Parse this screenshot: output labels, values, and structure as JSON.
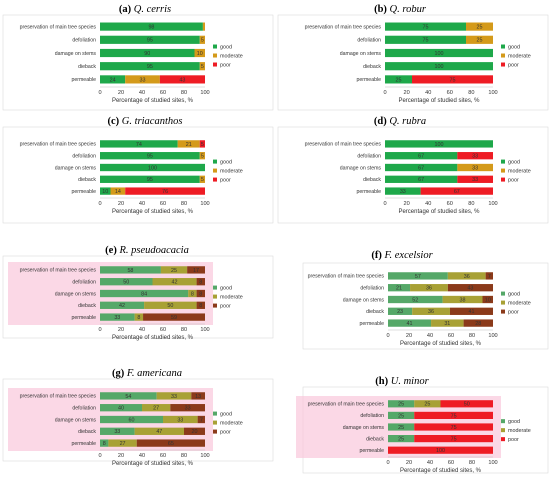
{
  "chart_data": [
    {
      "type": "bar",
      "stacked": true,
      "orientation": "horizontal",
      "label": "(a)",
      "species": "Q. cerris",
      "categories": [
        "preservation of main tree species",
        "defoliation",
        "damage on stems",
        "dieback",
        "permeable"
      ],
      "series": [
        {
          "name": "good",
          "values": [
            98,
            95,
            90,
            95,
            24
          ],
          "labels": [
            "98",
            "95",
            "90",
            "95",
            "24"
          ]
        },
        {
          "name": "moderate",
          "values": [
            2,
            5,
            10,
            5,
            33
          ],
          "labels": [
            "",
            "5",
            "10",
            "5",
            "33"
          ]
        },
        {
          "name": "poor",
          "values": [
            0,
            0,
            0,
            0,
            43
          ],
          "labels": [
            "",
            "",
            "",
            "",
            "43"
          ]
        }
      ],
      "xlabel": "Percentage of studied sites, %",
      "xlim": [
        0,
        100
      ],
      "xticks": [
        "0",
        "20",
        "40",
        "60",
        "80",
        "100"
      ],
      "legend": "right"
    },
    {
      "type": "bar",
      "stacked": true,
      "orientation": "horizontal",
      "label": "(b)",
      "species": "Q. robur",
      "categories": [
        "preservation of main tree species",
        "defoliation",
        "damage on stems",
        "dieback",
        "permeable"
      ],
      "series": [
        {
          "name": "good",
          "values": [
            75,
            75,
            100,
            100,
            25
          ],
          "labels": [
            "75",
            "75",
            "100",
            "100",
            "25"
          ]
        },
        {
          "name": "moderate",
          "values": [
            25,
            25,
            0,
            0,
            0
          ],
          "labels": [
            "25",
            "25",
            "",
            "",
            ""
          ]
        },
        {
          "name": "poor",
          "values": [
            0,
            0,
            0,
            0,
            75
          ],
          "labels": [
            "",
            "",
            "",
            "",
            "75"
          ]
        }
      ],
      "xlabel": "Percentage of studied sites, %",
      "xlim": [
        0,
        100
      ],
      "xticks": [
        "0",
        "20",
        "40",
        "60",
        "80",
        "100"
      ],
      "legend": "right"
    },
    {
      "type": "bar",
      "stacked": true,
      "orientation": "horizontal",
      "label": "(c)",
      "species": "G. triacanthos",
      "categories": [
        "preservation of main tree species",
        "defoliation",
        "damage on stems",
        "dieback",
        "permeable"
      ],
      "series": [
        {
          "name": "good",
          "values": [
            74,
            95,
            100,
            95,
            10
          ],
          "labels": [
            "74",
            "95",
            "100",
            "95",
            "10"
          ]
        },
        {
          "name": "moderate",
          "values": [
            21,
            5,
            0,
            5,
            14
          ],
          "labels": [
            "21",
            "5",
            "",
            "5",
            "14"
          ]
        },
        {
          "name": "poor",
          "values": [
            5,
            0,
            0,
            0,
            76
          ],
          "labels": [
            "5",
            "",
            "",
            "",
            "76"
          ]
        }
      ],
      "xlabel": "Percentage of studied sites, %",
      "xlim": [
        0,
        100
      ],
      "xticks": [
        "0",
        "20",
        "40",
        "60",
        "80",
        "100"
      ],
      "legend": "right"
    },
    {
      "type": "bar",
      "stacked": true,
      "orientation": "horizontal",
      "label": "(d)",
      "species": "Q. rubra",
      "categories": [
        "preservation of main tree species",
        "defoliation",
        "damage on stems",
        "dieback",
        "permeable"
      ],
      "series": [
        {
          "name": "good",
          "values": [
            100,
            67,
            67,
            67,
            33
          ],
          "labels": [
            "100",
            "67",
            "67",
            "67",
            "33"
          ]
        },
        {
          "name": "moderate",
          "values": [
            0,
            0,
            33,
            0,
            0
          ],
          "labels": [
            "",
            "",
            "33",
            "",
            ""
          ]
        },
        {
          "name": "poor",
          "values": [
            0,
            33,
            0,
            33,
            67
          ],
          "labels": [
            "",
            "33",
            "",
            "33",
            "67"
          ]
        }
      ],
      "xlabel": "Percentage of studied sites, %",
      "xlim": [
        0,
        100
      ],
      "xticks": [
        "0",
        "20",
        "40",
        "60",
        "80",
        "100"
      ],
      "legend": "right"
    },
    {
      "type": "bar",
      "stacked": true,
      "orientation": "horizontal",
      "label": "(e)",
      "species": "R. pseudoacacia",
      "categories": [
        "preservation of main tree species",
        "defoliation",
        "damage on stems",
        "dieback",
        "permeable"
      ],
      "series": [
        {
          "name": "good",
          "values": [
            58,
            50,
            84,
            42,
            33
          ],
          "labels": [
            "58",
            "50",
            "84",
            "42",
            "33"
          ]
        },
        {
          "name": "moderate",
          "values": [
            25,
            42,
            8,
            50,
            8
          ],
          "labels": [
            "25",
            "42",
            "8",
            "50",
            "8"
          ]
        },
        {
          "name": "poor",
          "values": [
            17,
            8,
            8,
            8,
            59
          ],
          "labels": [
            "17",
            "8",
            "8",
            "8",
            "59"
          ]
        }
      ],
      "xlabel": "Percentage of studied sites, %",
      "xlim": [
        0,
        100
      ],
      "xticks": [
        "0",
        "20",
        "40",
        "60",
        "80",
        "100"
      ],
      "legend": "right"
    },
    {
      "type": "bar",
      "stacked": true,
      "orientation": "horizontal",
      "label": "(f)",
      "species": "F. excelsior",
      "categories": [
        "preservation of main tree species",
        "defoliation",
        "damage on stems",
        "dieback",
        "permeable"
      ],
      "series": [
        {
          "name": "good",
          "values": [
            57,
            21,
            52,
            23,
            41
          ],
          "labels": [
            "57",
            "21",
            "52",
            "23",
            "41"
          ]
        },
        {
          "name": "moderate",
          "values": [
            36,
            36,
            38,
            36,
            31
          ],
          "labels": [
            "36",
            "36",
            "38",
            "36",
            "31"
          ]
        },
        {
          "name": "poor",
          "values": [
            7,
            43,
            10,
            41,
            28
          ],
          "labels": [
            "7",
            "43",
            "10",
            "41",
            "28"
          ]
        }
      ],
      "xlabel": "Percentage of studied sites, %",
      "xlim": [
        0,
        100
      ],
      "xticks": [
        "0",
        "20",
        "40",
        "60",
        "80",
        "100"
      ],
      "legend": "right"
    },
    {
      "type": "bar",
      "stacked": true,
      "orientation": "horizontal",
      "label": "(g)",
      "species": "F. americana",
      "categories": [
        "preservation of main tree species",
        "defoliation",
        "damage on stems",
        "dieback",
        "permeable"
      ],
      "series": [
        {
          "name": "good",
          "values": [
            54,
            40,
            60,
            33,
            8
          ],
          "labels": [
            "54",
            "40",
            "60",
            "33",
            "8"
          ]
        },
        {
          "name": "moderate",
          "values": [
            33,
            27,
            33,
            47,
            27
          ],
          "labels": [
            "33",
            "27",
            "33",
            "47",
            "27"
          ]
        },
        {
          "name": "poor",
          "values": [
            13,
            33,
            7,
            20,
            65
          ],
          "labels": [
            "13",
            "33",
            "7",
            "20",
            "65"
          ]
        }
      ],
      "xlabel": "Percentage of studied sites, %",
      "xlim": [
        0,
        100
      ],
      "xticks": [
        "0",
        "20",
        "40",
        "60",
        "80",
        "100"
      ],
      "legend": "right"
    },
    {
      "type": "bar",
      "stacked": true,
      "orientation": "horizontal",
      "label": "(h)",
      "species": "U. minor",
      "categories": [
        "preservation of main tree species",
        "defoliation",
        "damage on stems",
        "dieback",
        "permeable"
      ],
      "series": [
        {
          "name": "good",
          "values": [
            25,
            25,
            25,
            25,
            0
          ],
          "labels": [
            "25",
            "25",
            "25",
            "25",
            ""
          ]
        },
        {
          "name": "moderate",
          "values": [
            25,
            0,
            0,
            0,
            0
          ],
          "labels": [
            "25",
            "",
            "",
            "",
            ""
          ]
        },
        {
          "name": "poor",
          "values": [
            50,
            75,
            75,
            75,
            100
          ],
          "labels": [
            "50",
            "75",
            "75",
            "75",
            "100"
          ]
        }
      ],
      "xlabel": "Percentage of studied sites, %",
      "xlim": [
        0,
        100
      ],
      "xticks": [
        "0",
        "20",
        "40",
        "60",
        "80",
        "100"
      ],
      "legend": "right"
    }
  ],
  "colors": {
    "good": "#1ea84a",
    "moderate": "#d49a1a",
    "poor_red": "#ee1c24",
    "good_muted": "#55a868",
    "moderate_muted": "#a8a135",
    "poor_dark": "#8b3a1a",
    "pink_frame": "#f9c7dc",
    "axis": "#bfbfbf",
    "border": "#d9d9d9"
  }
}
